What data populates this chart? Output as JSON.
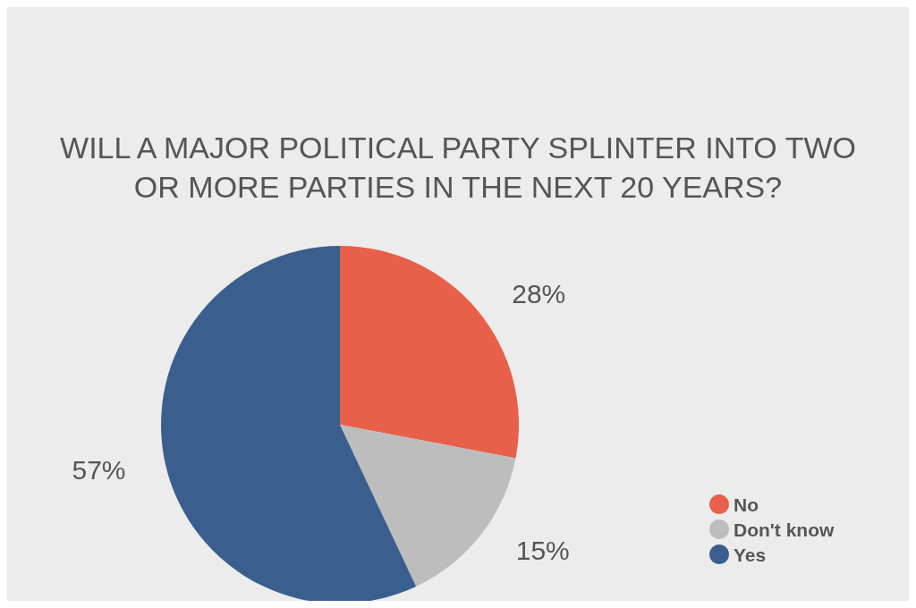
{
  "chart_data": {
    "type": "pie",
    "title": "WILL A MAJOR POLITICAL PARTY SPLINTER INTO TWO\nOR MORE PARTIES IN THE NEXT 20 YEARS?",
    "categories": [
      "No",
      "Don't know",
      "Yes"
    ],
    "values": [
      28,
      15,
      57
    ],
    "value_labels": [
      "28%",
      "15%",
      "57%"
    ],
    "colors": [
      "#e8604a",
      "#bdbdbd",
      "#3a5f8f"
    ],
    "legend": "bottom right"
  }
}
